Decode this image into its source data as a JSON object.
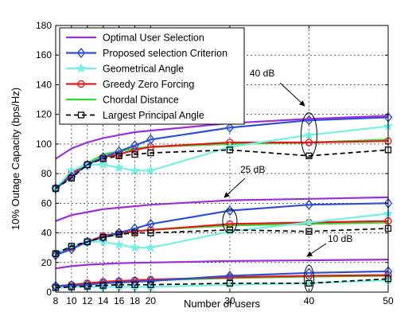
{
  "chart_data": {
    "type": "line",
    "title": "",
    "xlabel": "Number of users",
    "ylabel": "10% Outage Capacity (bps/Hz)",
    "xlim": [
      8,
      50
    ],
    "ylim": [
      0,
      180
    ],
    "xticks": [
      8,
      10,
      12,
      14,
      16,
      18,
      20,
      30,
      40,
      50
    ],
    "yticks": [
      0,
      20,
      40,
      60,
      80,
      100,
      120,
      140,
      160,
      180
    ],
    "grid": "dashed",
    "legend_placement": "top-left",
    "x": [
      8,
      10,
      12,
      14,
      16,
      18,
      20,
      30,
      40,
      50
    ],
    "series": [
      {
        "name": "Optimal User Selection",
        "color": "#9b30d9",
        "marker": "none",
        "dash": "solid",
        "groups": {
          "40 dB": [
            90,
            97,
            101,
            104,
            106,
            108,
            109,
            114,
            117,
            119
          ],
          "25 dB": [
            48,
            52,
            54,
            56,
            57,
            58,
            59,
            62,
            63,
            64
          ],
          "10 dB": [
            16,
            17.5,
            18.5,
            19,
            19.5,
            19.8,
            20,
            21,
            21.5,
            22
          ]
        }
      },
      {
        "name": "Proposed selection Criterion",
        "color": "#2e4fd6",
        "marker": "diamond",
        "dash": "solid",
        "groups": {
          "40 dB": [
            70,
            78,
            86,
            91,
            95,
            99,
            103,
            111,
            116,
            118
          ],
          "25 dB": [
            25,
            29,
            34,
            37,
            40,
            43,
            46,
            55,
            59,
            60
          ],
          "10 dB": [
            4,
            4.5,
            5,
            6,
            6.5,
            7,
            7.5,
            11,
            13,
            14
          ]
        }
      },
      {
        "name": "Geometrical Angle",
        "color": "#77f0e4",
        "marker": "star",
        "dash": "solid",
        "groups": {
          "40 dB": [
            70,
            82,
            86,
            86,
            84,
            82,
            82,
            98,
            106,
            112
          ],
          "25 dB": [
            26,
            31,
            34,
            34,
            32,
            30,
            30,
            41,
            47,
            53
          ],
          "10 dB": [
            3,
            3.5,
            3.5,
            3.5,
            3.5,
            3.5,
            3.5,
            5,
            6,
            8
          ]
        }
      },
      {
        "name": "Greedy Zero Forcing",
        "color": "#e31a1c",
        "marker": "circle",
        "dash": "solid",
        "groups": {
          "40 dB": [
            70,
            80,
            86,
            91,
            93,
            96,
            98,
            101,
            101,
            102
          ],
          "25 dB": [
            26,
            30,
            34,
            38,
            40,
            41,
            42,
            46,
            47,
            48
          ],
          "10 dB": [
            4,
            5,
            6,
            7,
            7.5,
            8,
            8.5,
            10,
            11,
            11.5
          ]
        }
      },
      {
        "name": "Chordal Distance",
        "color": "#33dd33",
        "marker": "none",
        "dash": "solid",
        "groups": {
          "40 dB": [
            70,
            81,
            87,
            93,
            95,
            97,
            98,
            100,
            101,
            103
          ],
          "25 dB": [
            25,
            30,
            34,
            37,
            39,
            41,
            42,
            45,
            46,
            47
          ],
          "10 dB": [
            4,
            5,
            6,
            6.5,
            7,
            7.5,
            8,
            9.5,
            10.5,
            11
          ]
        }
      },
      {
        "name": "Largest Principal Angle",
        "color": "#000000",
        "marker": "square",
        "dash": "dashed",
        "groups": {
          "40 dB": [
            70,
            77,
            86,
            90,
            92,
            93,
            94,
            96,
            92,
            96
          ],
          "25 dB": [
            26,
            31,
            34,
            37,
            39,
            40,
            40,
            42,
            41,
            43
          ],
          "10 dB": [
            3,
            3.5,
            4,
            4.5,
            5,
            5,
            5,
            6,
            6,
            9
          ]
        }
      }
    ],
    "annotations": [
      {
        "label": "40 dB",
        "x": 40,
        "y": 110
      },
      {
        "label": "25 dB",
        "x": 30,
        "y": 48
      },
      {
        "label": "10 dB",
        "x": 40,
        "y": 10
      }
    ]
  }
}
